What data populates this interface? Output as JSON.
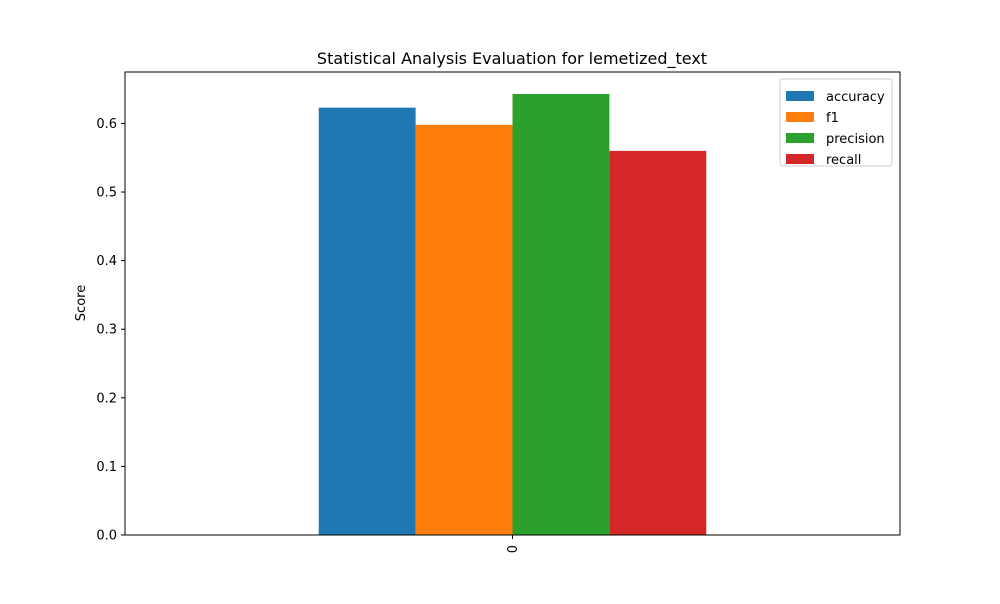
{
  "chart_data": {
    "type": "bar",
    "title": "Statistical Analysis Evaluation for lemetized_text",
    "xlabel": "",
    "ylabel": "Score",
    "categories": [
      "0"
    ],
    "ylim": [
      0,
      0.675
    ],
    "yticks": [
      0.0,
      0.1,
      0.2,
      0.3,
      0.4,
      0.5,
      0.6
    ],
    "ytick_labels": [
      "0.0",
      "0.1",
      "0.2",
      "0.3",
      "0.4",
      "0.5",
      "0.6"
    ],
    "grid": false,
    "legend_position": "top-right",
    "series": [
      {
        "name": "accuracy",
        "values": [
          0.623
        ],
        "color": "#1f77b4"
      },
      {
        "name": "f1",
        "values": [
          0.598
        ],
        "color": "#ff7f0e"
      },
      {
        "name": "precision",
        "values": [
          0.643
        ],
        "color": "#2ca02c"
      },
      {
        "name": "recall",
        "values": [
          0.56
        ],
        "color": "#d62728"
      }
    ]
  }
}
